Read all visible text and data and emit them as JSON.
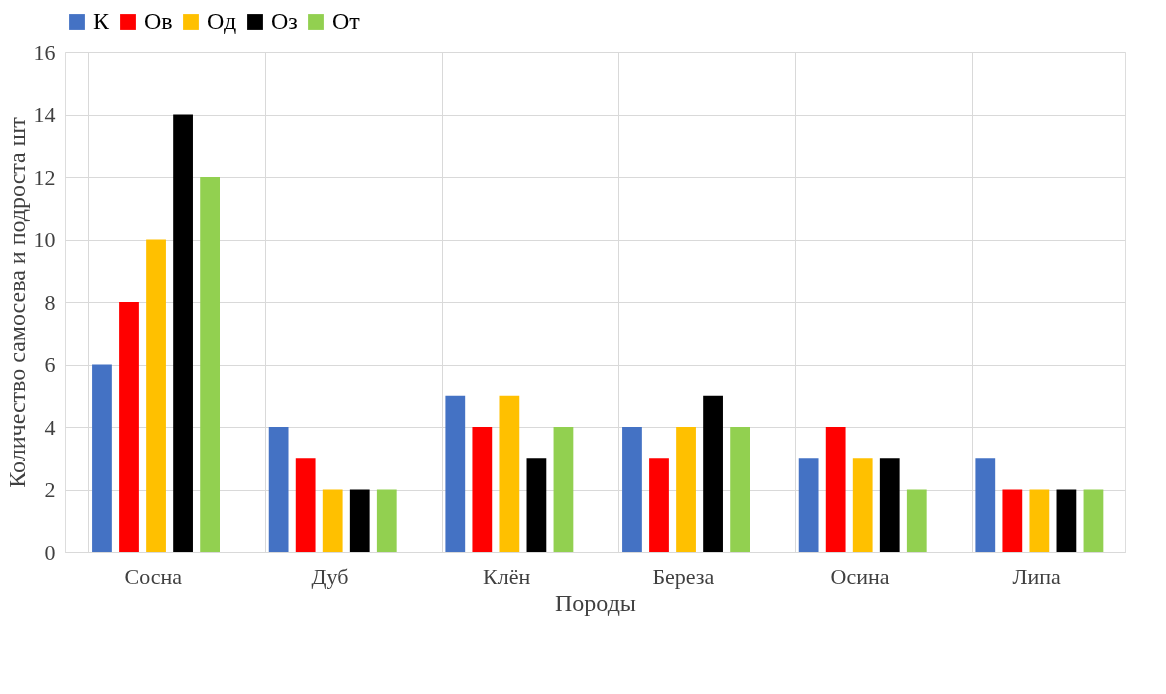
{
  "chart_data": {
    "type": "bar",
    "xlabel": "Породы",
    "ylabel": "Количество самосева и подроста шт",
    "categories": [
      "Сосна",
      "Дуб",
      "Клён",
      "Береза",
      "Осина",
      "Липа"
    ],
    "series": [
      {
        "name": "К",
        "color": "#4472c4",
        "values": [
          6,
          4,
          5,
          4,
          3,
          3
        ]
      },
      {
        "name": "Ов",
        "color": "#ff0000",
        "values": [
          8,
          3,
          4,
          3,
          4,
          2
        ]
      },
      {
        "name": "Од",
        "color": "#ffc000",
        "values": [
          10,
          2,
          5,
          4,
          3,
          2
        ]
      },
      {
        "name": "Оз",
        "color": "#000000",
        "values": [
          14,
          2,
          3,
          5,
          3,
          2
        ]
      },
      {
        "name": "От",
        "color": "#92d050",
        "values": [
          12,
          2,
          4,
          4,
          2,
          2
        ]
      }
    ],
    "ylim": [
      0,
      16
    ],
    "yticks": [
      0,
      2,
      4,
      6,
      8,
      10,
      12,
      14,
      16
    ],
    "grid": true,
    "legend": "top"
  }
}
